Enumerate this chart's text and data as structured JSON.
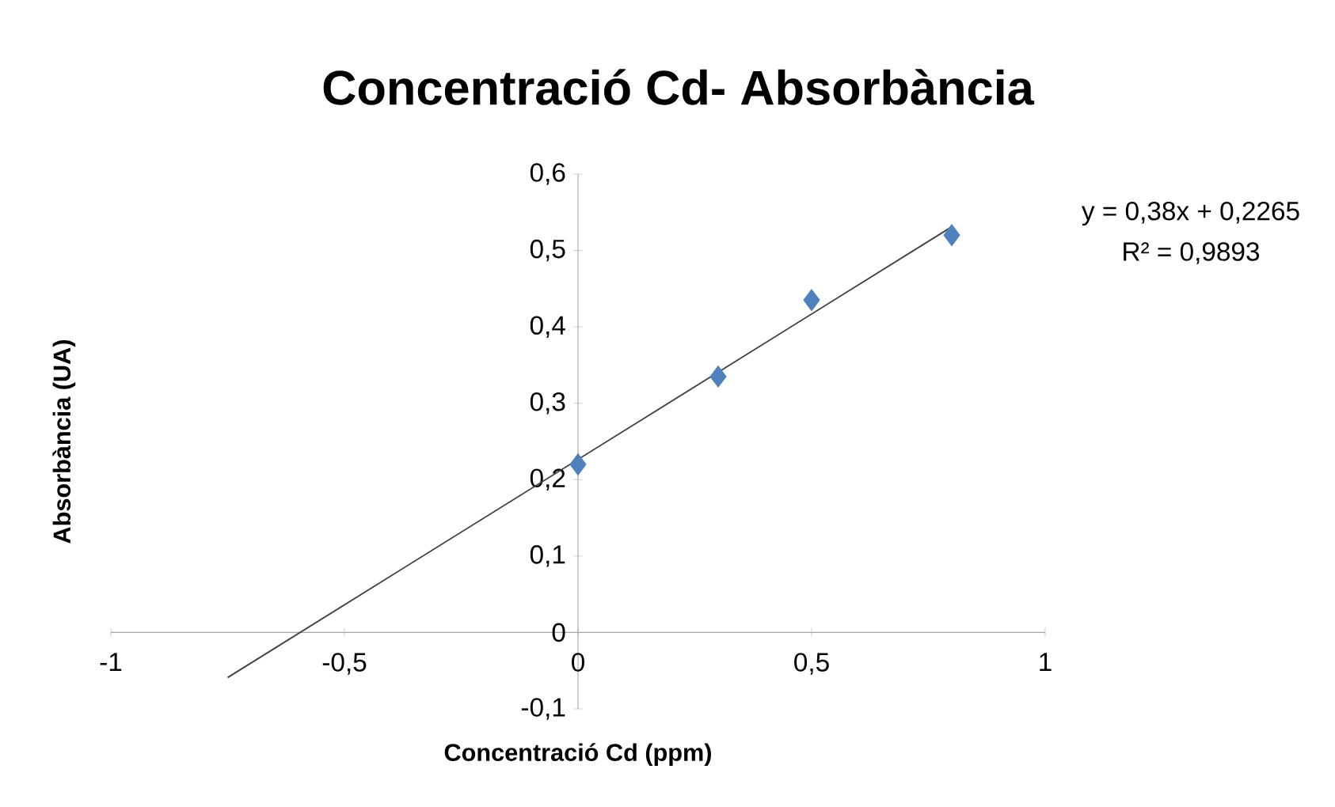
{
  "chart_data": {
    "type": "scatter",
    "title": "Concentració Cd- Absorbància",
    "xlabel": "Concentració Cd (ppm)",
    "ylabel": "Absorbància (UA)",
    "annotations": [
      "y = 0,38x + 0,2265",
      "R² = 0,9893"
    ],
    "series": [
      {
        "color": "#4f81bd",
        "x": [
          0,
          0.3,
          0.5,
          0.8
        ],
        "values": [
          0.22,
          0.335,
          0.435,
          0.52
        ]
      },
      {
        "type": "line",
        "marker": "none",
        "color": "#404040",
        "x": [
          -0.75,
          0.8
        ],
        "values": [
          -0.059,
          0.531
        ]
      }
    ],
    "marker": "diamond",
    "xlim": [
      -1,
      1
    ],
    "xticks": [
      {
        "value": -1,
        "label": "-1"
      },
      {
        "value": -0.5,
        "label": "-0,5"
      },
      {
        "value": 0,
        "label": "0"
      },
      {
        "value": 0.5,
        "label": "0,5"
      },
      {
        "value": 1,
        "label": "1"
      }
    ],
    "ylim": [
      -0.1,
      0.6
    ],
    "yticks": [
      {
        "value": -0.1,
        "label": "-0,1"
      },
      {
        "value": 0,
        "label": "0"
      },
      {
        "value": 0.1,
        "label": "0,1"
      },
      {
        "value": 0.2,
        "label": "0,2"
      },
      {
        "value": 0.3,
        "label": "0,3"
      },
      {
        "value": 0.4,
        "label": "0,4"
      },
      {
        "value": 0.5,
        "label": "0,5"
      },
      {
        "value": 0.6,
        "label": "0,6"
      }
    ]
  }
}
